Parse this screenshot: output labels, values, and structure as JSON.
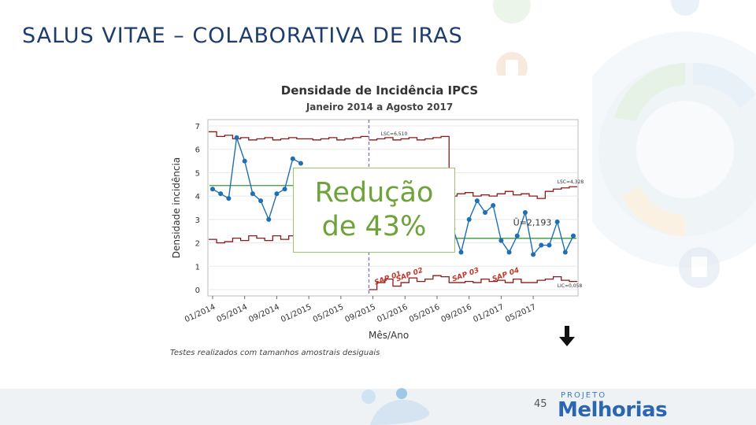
{
  "slide": {
    "title": "SALUS VITAE – COLABORATIVA DE IRAS",
    "overlay_text": "Redução\nde 43%",
    "footnote": "Testes realizados com tamanhos amostrais desiguais",
    "page_number": "45",
    "logo_small": "PROJETO",
    "logo_main": "Melhorias",
    "colors": {
      "title": "#1f3d6b",
      "overlay": "#6da33a",
      "series": "#1f6fb5",
      "limits": "#8b1a1a",
      "center": "#3a9a3a",
      "phase": "#7b7bc8"
    }
  },
  "chart_data": {
    "type": "line",
    "title": "Densidade de Incidência IPCS",
    "subtitle": "Janeiro 2014 a Agosto 2017",
    "xlabel": "Mês/Ano",
    "ylabel": "Densidade incidência",
    "ylim": [
      0,
      7
    ],
    "yticks": [
      "0",
      "1",
      "2",
      "3",
      "4",
      "5",
      "6",
      "7"
    ],
    "xticks": [
      {
        "i": 0,
        "label": "01/2014"
      },
      {
        "i": 4,
        "label": "05/2014"
      },
      {
        "i": 8,
        "label": "09/2014"
      },
      {
        "i": 12,
        "label": "01/2015"
      },
      {
        "i": 16,
        "label": "05/2015"
      },
      {
        "i": 20,
        "label": "09/2015"
      },
      {
        "i": 24,
        "label": "01/2016"
      },
      {
        "i": 28,
        "label": "05/2016"
      },
      {
        "i": 32,
        "label": "09/2016"
      },
      {
        "i": 36,
        "label": "01/2017"
      },
      {
        "i": 40,
        "label": "05/2017"
      }
    ],
    "series_values": [
      4.3,
      4.1,
      3.9,
      6.5,
      5.5,
      4.1,
      3.8,
      3.0,
      4.1,
      4.3,
      5.6,
      5.4,
      null,
      null,
      null,
      null,
      null,
      null,
      null,
      null,
      null,
      null,
      null,
      null,
      null,
      null,
      null,
      null,
      null,
      null,
      2.6,
      1.6,
      3.0,
      3.8,
      3.3,
      3.6,
      2.1,
      1.6,
      2.3,
      3.3,
      1.5,
      1.9,
      1.9,
      2.9,
      1.6,
      2.3
    ],
    "center_lines": [
      {
        "from": 0,
        "to": 20,
        "value": 4.45
      },
      {
        "from": 29,
        "to": 45,
        "value": 2.193
      }
    ],
    "ucl": [
      6.75,
      6.55,
      6.6,
      6.45,
      6.5,
      6.4,
      6.45,
      6.5,
      6.4,
      6.45,
      6.5,
      6.45,
      6.45,
      6.4,
      6.45,
      6.5,
      6.4,
      6.45,
      6.5,
      6.55,
      6.4,
      6.45,
      6.5,
      6.4,
      6.45,
      6.5,
      6.4,
      6.45,
      6.5,
      6.55,
      4.0,
      4.1,
      4.15,
      4.0,
      4.05,
      4.0,
      4.1,
      4.2,
      4.05,
      4.1,
      4.0,
      3.9,
      4.2,
      4.3,
      4.35,
      4.4
    ],
    "lcl": [
      2.15,
      2.0,
      2.05,
      2.2,
      2.1,
      2.3,
      2.2,
      2.1,
      2.3,
      2.15,
      2.3,
      2.2,
      2.1,
      2.2,
      2.25,
      2.3,
      2.2,
      2.3,
      2.25,
      2.4,
      0.0,
      0.3,
      0.45,
      0.15,
      0.3,
      0.5,
      0.35,
      0.45,
      0.6,
      0.55,
      0.3,
      0.3,
      0.35,
      0.3,
      0.45,
      0.35,
      0.4,
      0.3,
      0.45,
      0.3,
      0.3,
      0.4,
      0.45,
      0.55,
      0.4,
      0.35
    ],
    "phase_line_index": 20,
    "annotations": [
      {
        "text": "LSC=6,510",
        "i": 21,
        "y": 6.6
      },
      {
        "text": "LSC=4,328",
        "i": 43,
        "y": 4.55
      },
      {
        "text": "Ū=2,193",
        "i": 37.5,
        "y": 2.75
      },
      {
        "text": "LIC=0,058",
        "i": 43,
        "y": 0.1
      }
    ],
    "phase_labels": [
      {
        "text": "SAP 01",
        "i": 20.3,
        "y": 0.2
      },
      {
        "text": "SAP 02",
        "i": 23.0,
        "y": 0.35
      },
      {
        "text": "SAP 03",
        "i": 30.0,
        "y": 0.35
      },
      {
        "text": "SAP 04",
        "i": 35.0,
        "y": 0.35
      }
    ]
  }
}
